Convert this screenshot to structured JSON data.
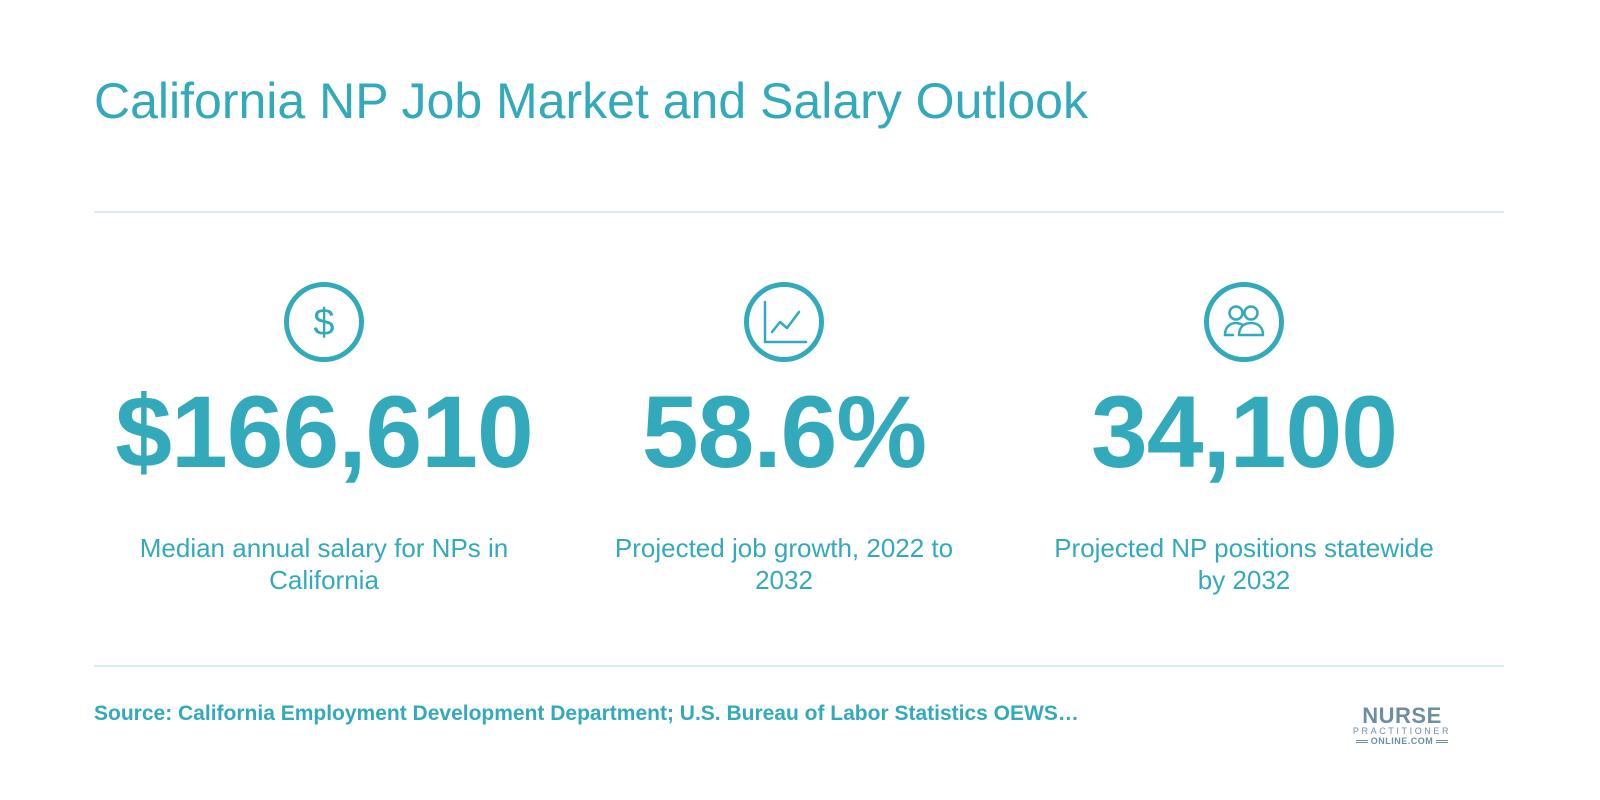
{
  "title": "California NP Job Market and Salary Outlook",
  "colors": {
    "accent": "#33aabb",
    "divider": "#d4eef0",
    "logo": "#6d8fa3"
  },
  "stats": [
    {
      "icon": "dollar-icon",
      "value": "$166,610",
      "description": "Median annual salary for NPs in California"
    },
    {
      "icon": "line-chart-icon",
      "value": "58.6%",
      "description": "Projected job growth, 2022 to 2032"
    },
    {
      "icon": "people-icon",
      "value": "34,100",
      "description": "Projected NP positions statewide by 2032"
    }
  ],
  "source": "Source: California Employment Development Department; U.S. Bureau of Labor Statistics OEWS…",
  "logo": {
    "line1": "NURSE",
    "line2": "PRACTITIONER",
    "line3": "ONLINE.COM"
  }
}
